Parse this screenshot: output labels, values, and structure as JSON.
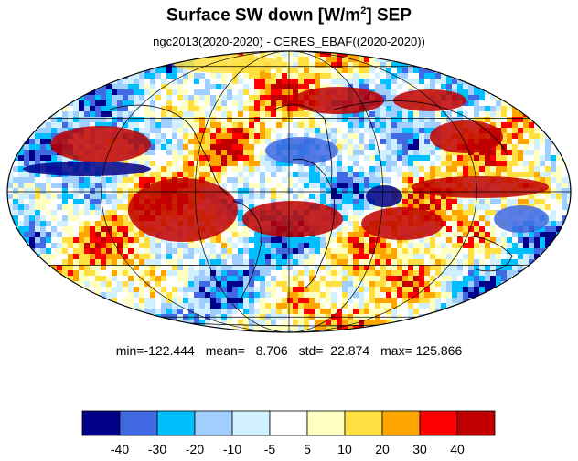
{
  "title": {
    "main": "Surface SW down [W/m",
    "sup": "2",
    "after": "]  SEP"
  },
  "subtitle": "ngc2013(2020-2020) - CERES_EBAF((2020-2020))",
  "stats": {
    "min": "min=-122.444",
    "mean": "mean=   8.706",
    "std": "std=  22.874",
    "max": "max= 125.866"
  },
  "colorbar": {
    "colors": [
      "#00008b",
      "#4169e1",
      "#00bfff",
      "#a0cfff",
      "#d0efff",
      "#ffffff",
      "#ffffc0",
      "#ffe040",
      "#ffa500",
      "#ff0000",
      "#c00000"
    ],
    "labels": [
      "-40",
      "-30",
      "-20",
      "-10",
      "-5",
      "5",
      "10",
      "20",
      "30",
      "40"
    ]
  }
}
